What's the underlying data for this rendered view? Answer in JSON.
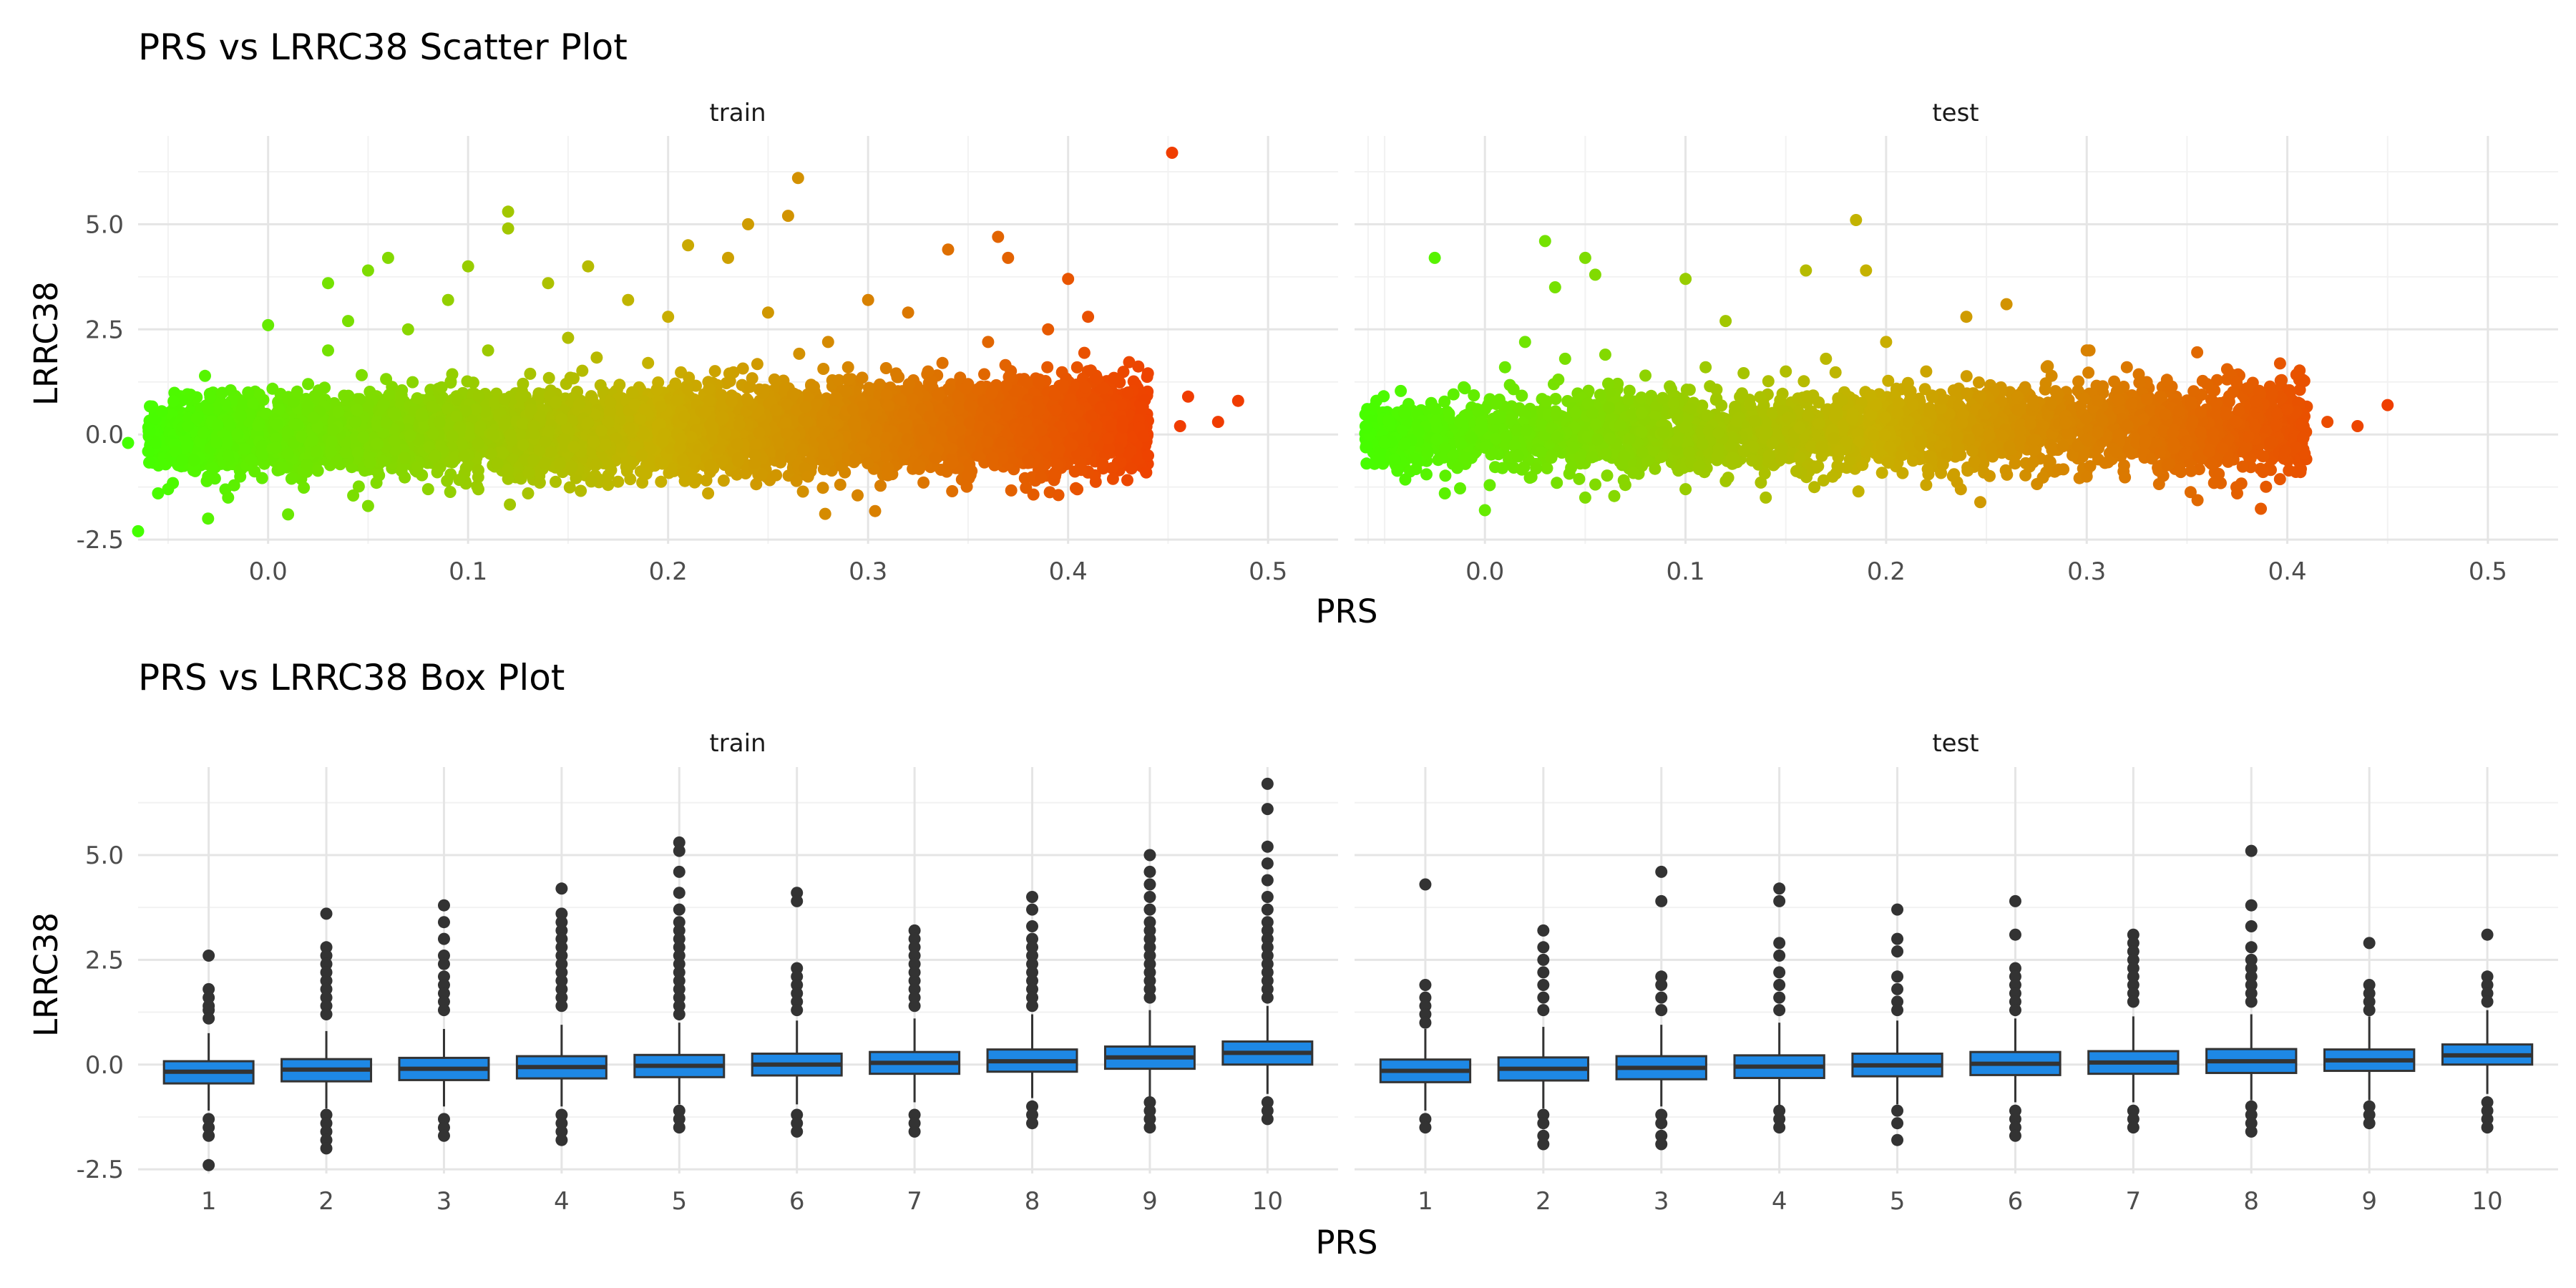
{
  "chart_data": [
    {
      "type": "scatter",
      "title": "PRS vs LRRC38 Scatter Plot",
      "xlabel": "PRS",
      "ylabel": "LRRC38",
      "facets": [
        "train",
        "test"
      ],
      "xlim": [
        -0.065,
        0.535
      ],
      "ylim": [
        -2.6,
        7.1
      ],
      "x_ticks": [
        0.0,
        0.1,
        0.2,
        0.3,
        0.4,
        0.5
      ],
      "x_tick_labels": [
        "0.0",
        "0.1",
        "0.2",
        "0.3",
        "0.4",
        "0.5"
      ],
      "y_ticks": [
        -2.5,
        0.0,
        2.5,
        5.0
      ],
      "y_tick_labels": [
        "-2.5",
        "0.0",
        "2.5",
        "5.0"
      ],
      "grid": true,
      "color_scale": {
        "low": "#44ff00",
        "mid": "#c8b000",
        "high": "#f03c00"
      },
      "series": [
        {
          "facet": "train",
          "points": [
            [
              -0.07,
              -0.2
            ],
            [
              -0.05,
              -1.3
            ],
            [
              -0.04,
              0.2
            ],
            [
              -0.03,
              -1.0
            ],
            [
              -0.03,
              0.6
            ],
            [
              -0.02,
              -0.5
            ],
            [
              -0.01,
              1.0
            ],
            [
              0.0,
              2.6
            ],
            [
              0.01,
              -1.9
            ],
            [
              0.02,
              1.2
            ],
            [
              0.03,
              2.0
            ],
            [
              0.03,
              3.6
            ],
            [
              0.04,
              2.7
            ],
            [
              0.05,
              -1.7
            ],
            [
              0.05,
              3.9
            ],
            [
              0.06,
              4.2
            ],
            [
              0.07,
              2.5
            ],
            [
              0.08,
              -1.3
            ],
            [
              0.09,
              3.2
            ],
            [
              0.1,
              4.0
            ],
            [
              0.11,
              2.0
            ],
            [
              0.12,
              5.3
            ],
            [
              0.12,
              4.9
            ],
            [
              0.13,
              -1.4
            ],
            [
              0.14,
              3.6
            ],
            [
              0.15,
              2.3
            ],
            [
              0.16,
              4.0
            ],
            [
              0.17,
              -1.2
            ],
            [
              0.18,
              3.2
            ],
            [
              0.19,
              1.7
            ],
            [
              0.2,
              2.8
            ],
            [
              0.21,
              4.5
            ],
            [
              0.22,
              -1.4
            ],
            [
              0.23,
              4.2
            ],
            [
              0.24,
              5.0
            ],
            [
              0.25,
              2.9
            ],
            [
              0.26,
              5.2
            ],
            [
              0.265,
              6.1
            ],
            [
              0.27,
              -1.0
            ],
            [
              0.28,
              2.2
            ],
            [
              0.29,
              1.6
            ],
            [
              0.3,
              3.2
            ],
            [
              0.31,
              -0.8
            ],
            [
              0.32,
              2.9
            ],
            [
              0.33,
              1.5
            ],
            [
              0.34,
              4.4
            ],
            [
              0.35,
              1.2
            ],
            [
              0.36,
              2.2
            ],
            [
              0.365,
              4.7
            ],
            [
              0.37,
              4.2
            ],
            [
              0.38,
              -0.6
            ],
            [
              0.39,
              2.5
            ],
            [
              0.4,
              3.7
            ],
            [
              0.41,
              2.8
            ],
            [
              0.42,
              -0.1
            ],
            [
              0.43,
              1.0
            ],
            [
              0.44,
              -0.5
            ],
            [
              0.452,
              6.7
            ],
            [
              0.46,
              0.9
            ],
            [
              0.475,
              0.3
            ],
            [
              0.485,
              0.8
            ],
            [
              0.456,
              0.2
            ],
            [
              -0.065,
              -2.3
            ],
            [
              -0.06,
              -0.4
            ],
            [
              -0.055,
              -1.4
            ],
            [
              -0.03,
              -2.0
            ],
            [
              -0.02,
              -1.5
            ]
          ]
        },
        {
          "facet": "test",
          "points": [
            [
              -0.05,
              -0.2
            ],
            [
              -0.045,
              -0.6
            ],
            [
              -0.04,
              0.5
            ],
            [
              -0.025,
              4.2
            ],
            [
              -0.02,
              -1.4
            ],
            [
              -0.01,
              1.1
            ],
            [
              0.0,
              -1.8
            ],
            [
              0.01,
              1.6
            ],
            [
              0.02,
              2.2
            ],
            [
              0.03,
              4.6
            ],
            [
              0.035,
              3.5
            ],
            [
              0.04,
              1.8
            ],
            [
              0.05,
              4.2
            ],
            [
              0.055,
              3.8
            ],
            [
              0.06,
              1.9
            ],
            [
              0.07,
              -1.2
            ],
            [
              0.08,
              1.4
            ],
            [
              0.1,
              3.7
            ],
            [
              0.11,
              1.6
            ],
            [
              0.12,
              2.7
            ],
            [
              0.14,
              -1.5
            ],
            [
              0.15,
              1.5
            ],
            [
              0.16,
              3.9
            ],
            [
              0.17,
              1.8
            ],
            [
              0.185,
              5.1
            ],
            [
              0.19,
              3.9
            ],
            [
              0.2,
              2.2
            ],
            [
              0.22,
              1.5
            ],
            [
              0.24,
              2.8
            ],
            [
              0.26,
              3.1
            ],
            [
              0.28,
              1.6
            ],
            [
              0.3,
              2.0
            ],
            [
              0.32,
              1.6
            ],
            [
              0.34,
              1.3
            ],
            [
              0.36,
              1.2
            ],
            [
              0.375,
              -1.4
            ],
            [
              0.38,
              1.1
            ],
            [
              0.4,
              0.6
            ],
            [
              0.42,
              0.3
            ],
            [
              0.435,
              0.2
            ],
            [
              0.45,
              0.7
            ],
            [
              0.3,
              -1.0
            ],
            [
              0.22,
              -1.2
            ],
            [
              0.1,
              -1.3
            ],
            [
              0.05,
              -1.5
            ]
          ]
        }
      ]
    },
    {
      "type": "box",
      "title": "PRS vs LRRC38 Box Plot",
      "xlabel": "PRS",
      "ylabel": "LRRC38",
      "facets": [
        "train",
        "test"
      ],
      "categories": [
        "1",
        "2",
        "3",
        "4",
        "5",
        "6",
        "7",
        "8",
        "9",
        "10"
      ],
      "ylim": [
        -2.6,
        7.1
      ],
      "y_ticks": [
        -2.5,
        0.0,
        2.5,
        5.0
      ],
      "y_tick_labels": [
        "-2.5",
        "0.0",
        "2.5",
        "5.0"
      ],
      "grid": true,
      "box_color": "#1e88e5",
      "series": [
        {
          "facet": "train",
          "boxes": [
            {
              "q1": -0.45,
              "median": -0.17,
              "q3": 0.08,
              "whisker_low": -1.1,
              "whisker_high": 0.75,
              "outliers": [
                2.6,
                1.8,
                1.6,
                1.4,
                1.3,
                1.1,
                -1.3,
                -1.5,
                -1.7,
                -2.4
              ]
            },
            {
              "q1": -0.4,
              "median": -0.12,
              "q3": 0.13,
              "whisker_low": -1.05,
              "whisker_high": 0.8,
              "outliers": [
                3.6,
                2.8,
                2.6,
                2.4,
                2.2,
                2.0,
                1.8,
                1.6,
                1.4,
                1.2,
                -1.2,
                -1.4,
                -1.6,
                -1.8,
                -2.0
              ]
            },
            {
              "q1": -0.37,
              "median": -0.1,
              "q3": 0.16,
              "whisker_low": -1.0,
              "whisker_high": 0.85,
              "outliers": [
                3.8,
                3.4,
                3.0,
                2.6,
                2.4,
                2.1,
                1.9,
                1.7,
                1.5,
                1.3,
                -1.3,
                -1.5,
                -1.7
              ]
            },
            {
              "q1": -0.33,
              "median": -0.06,
              "q3": 0.2,
              "whisker_low": -1.0,
              "whisker_high": 0.95,
              "outliers": [
                4.2,
                3.6,
                3.4,
                3.2,
                3.0,
                2.8,
                2.6,
                2.4,
                2.2,
                2.0,
                1.8,
                1.6,
                1.4,
                -1.2,
                -1.4,
                -1.6,
                -1.8
              ]
            },
            {
              "q1": -0.3,
              "median": -0.03,
              "q3": 0.23,
              "whisker_low": -0.95,
              "whisker_high": 1.0,
              "outliers": [
                5.3,
                5.1,
                4.6,
                4.1,
                3.7,
                3.4,
                3.2,
                3.0,
                2.8,
                2.6,
                2.4,
                2.2,
                2.0,
                1.8,
                1.6,
                1.4,
                1.2,
                -1.1,
                -1.3,
                -1.5
              ]
            },
            {
              "q1": -0.26,
              "median": 0.0,
              "q3": 0.26,
              "whisker_low": -0.95,
              "whisker_high": 1.05,
              "outliers": [
                4.1,
                3.9,
                2.3,
                2.1,
                1.9,
                1.7,
                1.5,
                1.3,
                -1.2,
                -1.4,
                -1.6
              ]
            },
            {
              "q1": -0.22,
              "median": 0.04,
              "q3": 0.3,
              "whisker_low": -0.9,
              "whisker_high": 1.1,
              "outliers": [
                3.2,
                3.0,
                2.8,
                2.6,
                2.4,
                2.2,
                2.0,
                1.8,
                1.6,
                1.4,
                -1.2,
                -1.4,
                -1.6
              ]
            },
            {
              "q1": -0.17,
              "median": 0.08,
              "q3": 0.36,
              "whisker_low": -0.8,
              "whisker_high": 1.2,
              "outliers": [
                4.0,
                3.7,
                3.3,
                3.0,
                2.8,
                2.6,
                2.4,
                2.2,
                2.0,
                1.8,
                1.6,
                1.4,
                -1.0,
                -1.2,
                -1.4
              ]
            },
            {
              "q1": -0.1,
              "median": 0.17,
              "q3": 0.43,
              "whisker_low": -0.8,
              "whisker_high": 1.3,
              "outliers": [
                5.0,
                4.6,
                4.3,
                4.0,
                3.7,
                3.4,
                3.2,
                3.0,
                2.8,
                2.6,
                2.4,
                2.2,
                2.0,
                1.8,
                1.6,
                -0.9,
                -1.1,
                -1.3,
                -1.5
              ]
            },
            {
              "q1": 0.0,
              "median": 0.28,
              "q3": 0.55,
              "whisker_low": -0.7,
              "whisker_high": 1.4,
              "outliers": [
                6.7,
                6.1,
                5.2,
                4.8,
                4.4,
                4.0,
                3.7,
                3.4,
                3.2,
                3.0,
                2.8,
                2.6,
                2.4,
                2.2,
                2.0,
                1.8,
                1.6,
                -0.9,
                -1.1,
                -1.3
              ]
            }
          ]
        },
        {
          "facet": "test",
          "boxes": [
            {
              "q1": -0.42,
              "median": -0.15,
              "q3": 0.12,
              "whisker_low": -1.1,
              "whisker_high": 0.85,
              "outliers": [
                4.3,
                1.9,
                1.6,
                1.4,
                1.2,
                1.0,
                -1.3,
                -1.5
              ]
            },
            {
              "q1": -0.38,
              "median": -0.1,
              "q3": 0.17,
              "whisker_low": -1.05,
              "whisker_high": 0.9,
              "outliers": [
                3.2,
                2.8,
                2.5,
                2.2,
                1.9,
                1.6,
                1.3,
                -1.2,
                -1.4,
                -1.7,
                -1.9
              ]
            },
            {
              "q1": -0.35,
              "median": -0.08,
              "q3": 0.2,
              "whisker_low": -1.0,
              "whisker_high": 0.95,
              "outliers": [
                4.6,
                3.9,
                2.1,
                1.9,
                1.6,
                1.3,
                -1.2,
                -1.4,
                -1.7,
                -1.9
              ]
            },
            {
              "q1": -0.32,
              "median": -0.05,
              "q3": 0.22,
              "whisker_low": -1.0,
              "whisker_high": 1.0,
              "outliers": [
                4.2,
                3.9,
                2.9,
                2.6,
                2.2,
                1.9,
                1.6,
                1.3,
                -1.1,
                -1.3,
                -1.5
              ]
            },
            {
              "q1": -0.28,
              "median": -0.02,
              "q3": 0.26,
              "whisker_low": -0.95,
              "whisker_high": 1.05,
              "outliers": [
                3.7,
                3.0,
                2.7,
                2.1,
                1.8,
                1.5,
                1.3,
                -1.1,
                -1.4,
                -1.8
              ]
            },
            {
              "q1": -0.25,
              "median": 0.02,
              "q3": 0.3,
              "whisker_low": -0.9,
              "whisker_high": 1.1,
              "outliers": [
                3.9,
                3.1,
                2.3,
                2.1,
                1.9,
                1.7,
                1.5,
                1.3,
                -1.1,
                -1.3,
                -1.5,
                -1.7
              ]
            },
            {
              "q1": -0.22,
              "median": 0.05,
              "q3": 0.32,
              "whisker_low": -0.9,
              "whisker_high": 1.15,
              "outliers": [
                3.1,
                2.9,
                2.7,
                2.5,
                2.3,
                2.1,
                1.9,
                1.7,
                1.5,
                -1.1,
                -1.3,
                -1.5
              ]
            },
            {
              "q1": -0.2,
              "median": 0.08,
              "q3": 0.37,
              "whisker_low": -0.85,
              "whisker_high": 1.2,
              "outliers": [
                5.1,
                3.8,
                3.3,
                2.8,
                2.5,
                2.3,
                2.1,
                1.9,
                1.7,
                1.5,
                -1.0,
                -1.2,
                -1.4,
                -1.6
              ]
            },
            {
              "q1": -0.15,
              "median": 0.1,
              "q3": 0.36,
              "whisker_low": -0.85,
              "whisker_high": 1.15,
              "outliers": [
                2.9,
                1.9,
                1.7,
                1.5,
                1.3,
                -1.0,
                -1.2,
                -1.4
              ]
            },
            {
              "q1": 0.0,
              "median": 0.22,
              "q3": 0.48,
              "whisker_low": -0.7,
              "whisker_high": 1.3,
              "outliers": [
                3.1,
                2.1,
                1.9,
                1.7,
                1.5,
                -0.9,
                -1.1,
                -1.3,
                -1.5
              ]
            }
          ]
        }
      ]
    }
  ]
}
